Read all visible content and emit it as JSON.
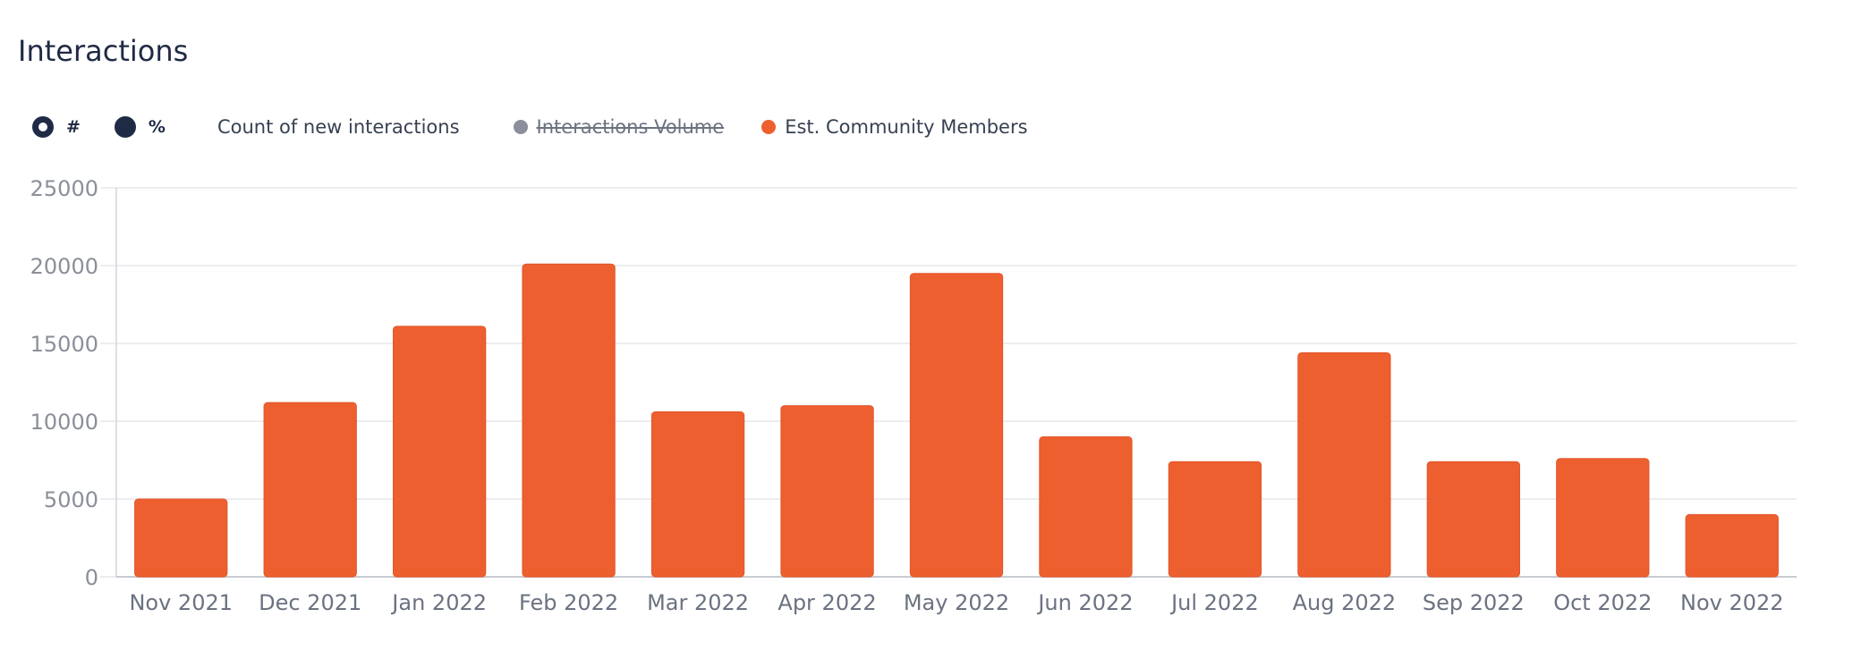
{
  "header": {
    "title": "Interactions"
  },
  "controls": {
    "mode_options": [
      {
        "label": "#",
        "selected": true
      },
      {
        "label": "%",
        "selected": false
      }
    ],
    "metric_label": "Count of new interactions"
  },
  "legend": [
    {
      "name": "Interactions Volume",
      "color": "#8a8f99",
      "visible": false
    },
    {
      "name": "Est. Community Members",
      "color": "#ee5f2f",
      "visible": true
    }
  ],
  "chart_data": {
    "type": "bar",
    "categories": [
      "Nov 2021",
      "Dec 2021",
      "Jan 2022",
      "Feb 2022",
      "Mar 2022",
      "Apr 2022",
      "May 2022",
      "Jun 2022",
      "Jul 2022",
      "Aug 2022",
      "Sep 2022",
      "Oct 2022",
      "Nov 2022"
    ],
    "series": [
      {
        "name": "Est. Community Members",
        "color": "#ee5f2f",
        "values": [
          5000,
          11200,
          16100,
          20100,
          10600,
          11000,
          19500,
          9000,
          7400,
          14400,
          7400,
          7600,
          4000
        ]
      }
    ],
    "yticks": [
      0,
      5000,
      10000,
      15000,
      20000,
      25000
    ],
    "ylim": [
      0,
      25000
    ],
    "grid": true
  }
}
